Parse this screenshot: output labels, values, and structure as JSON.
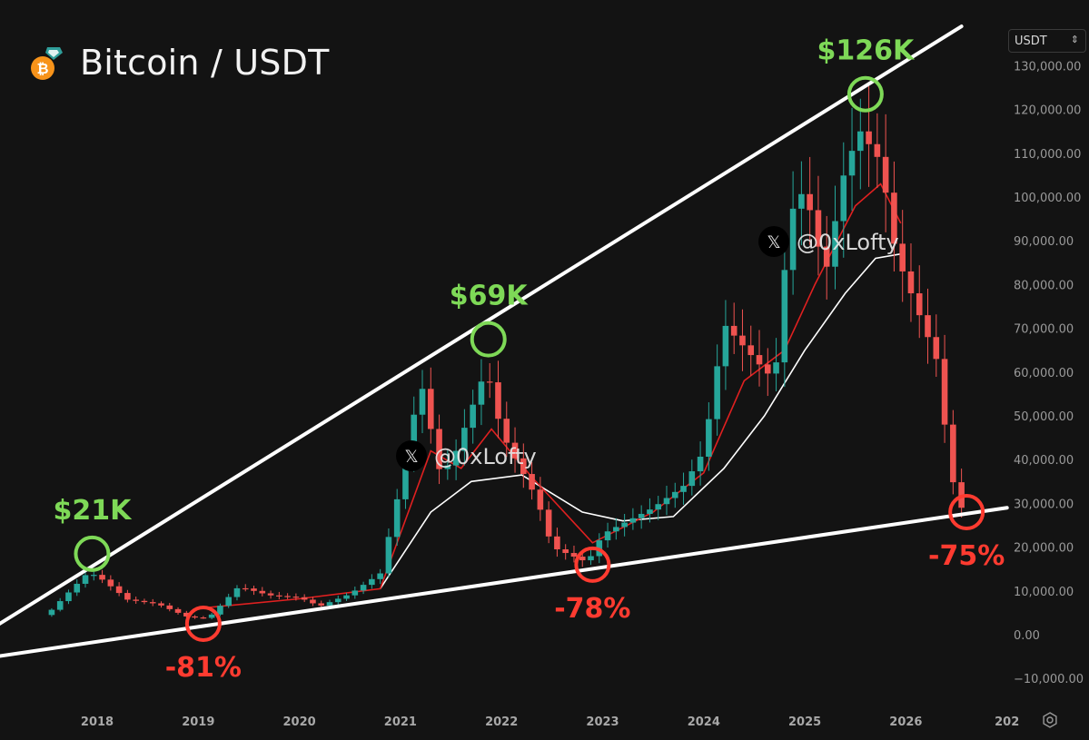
{
  "header": {
    "title": "Bitcoin / USDT",
    "logo": "bitcoin-logo-icon"
  },
  "controls": {
    "currency": "USDT",
    "settings_icon": "gear-icon"
  },
  "watermark": {
    "icon": "x-logo-icon",
    "handle": "@0xLofty"
  },
  "colors": {
    "background": "#131313",
    "up": "#26a69a",
    "down": "#ef5350",
    "ma_fast": "#e02020",
    "ma_slow": "#ffffff",
    "peak": "#7ed957",
    "bottom": "#ff3b30",
    "trendline": "#ffffff"
  },
  "chart_data": {
    "type": "candlestick",
    "title": "Bitcoin / USDT",
    "xlabel": "",
    "ylabel": "",
    "x_ticks": [
      "2018",
      "2019",
      "2020",
      "2021",
      "2022",
      "2023",
      "2024",
      "2025",
      "2026",
      "202"
    ],
    "y_ticks": [
      "130,000.00",
      "120,000.00",
      "110,000.00",
      "100,000.00",
      "90,000.00",
      "80,000.00",
      "70,000.00",
      "60,000.00",
      "50,000.00",
      "40,000.00",
      "30,000.00",
      "20,000.00",
      "10,000.00",
      "0.00",
      "−10,000.00"
    ],
    "ylim": [
      -14000,
      134000
    ],
    "grid": false,
    "monthly_close_usd": [
      {
        "t": 2017.5,
        "c": 4500
      },
      {
        "t": 2017.9,
        "c": 14000
      },
      {
        "t": 2018.0,
        "c": 13500
      },
      {
        "t": 2018.3,
        "c": 8000
      },
      {
        "t": 2018.6,
        "c": 7000
      },
      {
        "t": 2018.9,
        "c": 4000
      },
      {
        "t": 2019.1,
        "c": 3800
      },
      {
        "t": 2019.4,
        "c": 11000
      },
      {
        "t": 2019.7,
        "c": 9000
      },
      {
        "t": 2020.0,
        "c": 8500
      },
      {
        "t": 2020.2,
        "c": 6500
      },
      {
        "t": 2020.5,
        "c": 9300
      },
      {
        "t": 2020.8,
        "c": 14000
      },
      {
        "t": 2020.95,
        "c": 29000
      },
      {
        "t": 2021.2,
        "c": 58000
      },
      {
        "t": 2021.4,
        "c": 36000
      },
      {
        "t": 2021.55,
        "c": 42000
      },
      {
        "t": 2021.85,
        "c": 61000
      },
      {
        "t": 2022.0,
        "c": 46000
      },
      {
        "t": 2022.35,
        "c": 31000
      },
      {
        "t": 2022.5,
        "c": 20000
      },
      {
        "t": 2022.85,
        "c": 16500
      },
      {
        "t": 2023.0,
        "c": 23000
      },
      {
        "t": 2023.5,
        "c": 29000
      },
      {
        "t": 2023.8,
        "c": 34000
      },
      {
        "t": 2024.0,
        "c": 42000
      },
      {
        "t": 2024.2,
        "c": 71000
      },
      {
        "t": 2024.5,
        "c": 63000
      },
      {
        "t": 2024.7,
        "c": 58000
      },
      {
        "t": 2024.85,
        "c": 96000
      },
      {
        "t": 2025.0,
        "c": 102000
      },
      {
        "t": 2025.2,
        "c": 82000
      },
      {
        "t": 2025.4,
        "c": 107000
      },
      {
        "t": 2025.55,
        "c": 115000
      },
      {
        "t": 2025.75,
        "c": 108000
      },
      {
        "t": 2025.9,
        "c": 87000
      },
      {
        "t": 2026.05,
        "c": 78000
      },
      {
        "t": 2026.3,
        "c": 63000
      },
      {
        "t": 2026.45,
        "c": 36000
      },
      {
        "t": 2026.55,
        "c": 29000
      }
    ],
    "ma_fast": [
      {
        "t": 2019.0,
        "c": 6000
      },
      {
        "t": 2020.0,
        "c": 8200
      },
      {
        "t": 2020.8,
        "c": 10500
      },
      {
        "t": 2021.3,
        "c": 42000
      },
      {
        "t": 2021.6,
        "c": 38000
      },
      {
        "t": 2021.9,
        "c": 47000
      },
      {
        "t": 2022.3,
        "c": 36000
      },
      {
        "t": 2022.9,
        "c": 21000
      },
      {
        "t": 2023.5,
        "c": 28000
      },
      {
        "t": 2024.0,
        "c": 37000
      },
      {
        "t": 2024.4,
        "c": 58000
      },
      {
        "t": 2024.8,
        "c": 65000
      },
      {
        "t": 2025.1,
        "c": 80000
      },
      {
        "t": 2025.5,
        "c": 98000
      },
      {
        "t": 2025.75,
        "c": 103000
      },
      {
        "t": 2025.95,
        "c": 94000
      }
    ],
    "ma_slow": [
      {
        "t": 2020.8,
        "c": 10500
      },
      {
        "t": 2021.3,
        "c": 28000
      },
      {
        "t": 2021.7,
        "c": 35000
      },
      {
        "t": 2022.2,
        "c": 36500
      },
      {
        "t": 2022.8,
        "c": 28000
      },
      {
        "t": 2023.2,
        "c": 26000
      },
      {
        "t": 2023.7,
        "c": 27000
      },
      {
        "t": 2024.2,
        "c": 38000
      },
      {
        "t": 2024.6,
        "c": 50000
      },
      {
        "t": 2025.0,
        "c": 65000
      },
      {
        "t": 2025.4,
        "c": 78000
      },
      {
        "t": 2025.7,
        "c": 86000
      },
      {
        "t": 2025.95,
        "c": 87000
      }
    ],
    "annotations": [
      {
        "kind": "peak",
        "label": "$21K",
        "t": 2017.95,
        "price": 18500
      },
      {
        "kind": "bottom",
        "label": "-81%",
        "t": 2019.05,
        "price": 2500
      },
      {
        "kind": "peak",
        "label": "$69K",
        "t": 2021.87,
        "price": 67500
      },
      {
        "kind": "bottom",
        "label": "-78%",
        "t": 2022.9,
        "price": 16000
      },
      {
        "kind": "peak",
        "label": "$126K",
        "t": 2025.6,
        "price": 123500
      },
      {
        "kind": "bottom",
        "label": "-75%",
        "t": 2026.6,
        "price": 28000
      }
    ],
    "trendlines": [
      {
        "name": "upper",
        "from": {
          "t": 2017.0,
          "price": 2000
        },
        "to": {
          "t": 2026.55,
          "price": 139000
        }
      },
      {
        "name": "lower",
        "from": {
          "t": 2017.0,
          "price": -5000
        },
        "to": {
          "t": 2027.0,
          "price": 29000
        }
      }
    ]
  }
}
